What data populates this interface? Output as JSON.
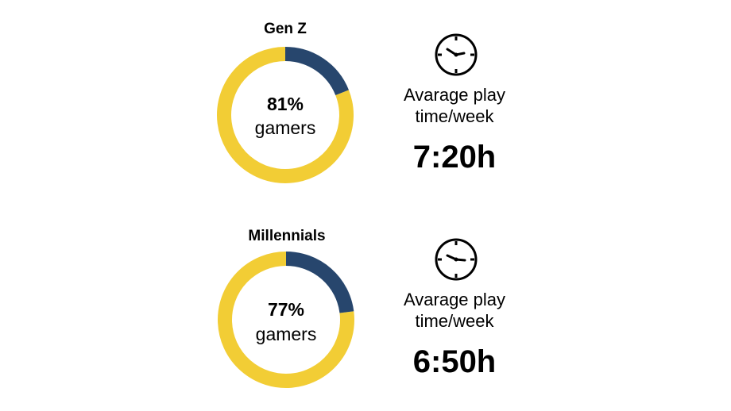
{
  "colors": {
    "gamers": "#f2cd35",
    "non_gamers": "#27466d"
  },
  "icons": {
    "clock": "clock-icon"
  },
  "groups": [
    {
      "title": "Gen Z",
      "percent_label": "81%",
      "sub_label": "gamers",
      "play_label_line1": "Avarage play",
      "play_label_line2": "time/week",
      "play_time": "7:20h"
    },
    {
      "title": "Millennials",
      "percent_label": "77%",
      "sub_label": "gamers",
      "play_label_line1": "Avarage play",
      "play_label_line2": "time/week",
      "play_time": "6:50h"
    }
  ],
  "chart_data": [
    {
      "type": "pie",
      "title": "Gen Z",
      "categories": [
        "gamers",
        ""
      ],
      "values": [
        81,
        19
      ]
    },
    {
      "type": "pie",
      "title": "Millennials",
      "categories": [
        "gamers",
        ""
      ],
      "values": [
        77,
        23
      ]
    }
  ]
}
